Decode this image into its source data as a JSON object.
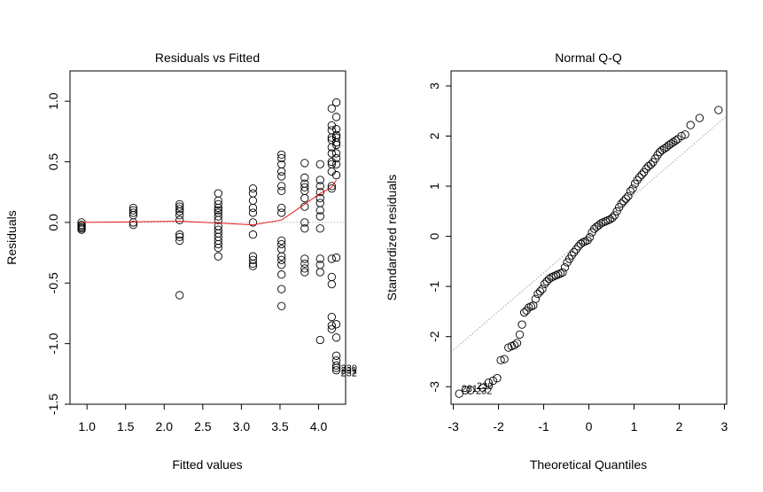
{
  "chart_data": [
    {
      "type": "scatter",
      "title": "Residuals vs Fitted",
      "xlabel": "Fitted values",
      "ylabel": "Residuals",
      "xlim": [
        0.78,
        4.35
      ],
      "ylim": [
        -1.5,
        1.25
      ],
      "xticks": [
        1.0,
        1.5,
        2.0,
        2.5,
        3.0,
        3.5,
        4.0
      ],
      "xtick_labels": [
        "1.0",
        "1.5",
        "2.0",
        "2.5",
        "3.0",
        "3.5",
        "4.0"
      ],
      "yticks": [
        -1.5,
        -1.0,
        -0.5,
        0.0,
        0.5,
        1.0
      ],
      "ytick_labels": [
        "-1.5",
        "-1.0",
        "-0.5",
        "0.0",
        "0.5",
        "1.0"
      ],
      "reference_line_y": 0,
      "points": [
        [
          0.93,
          0.0
        ],
        [
          0.93,
          -0.02
        ],
        [
          0.93,
          -0.03
        ],
        [
          0.93,
          -0.04
        ],
        [
          0.93,
          -0.05
        ],
        [
          0.93,
          -0.06
        ],
        [
          1.6,
          0.12
        ],
        [
          1.6,
          0.1
        ],
        [
          1.6,
          0.08
        ],
        [
          1.6,
          0.06
        ],
        [
          1.6,
          0.0
        ],
        [
          1.6,
          -0.02
        ],
        [
          2.2,
          0.15
        ],
        [
          2.2,
          0.13
        ],
        [
          2.2,
          0.11
        ],
        [
          2.2,
          0.09
        ],
        [
          2.2,
          0.06
        ],
        [
          2.2,
          0.02
        ],
        [
          2.2,
          -0.1
        ],
        [
          2.2,
          -0.12
        ],
        [
          2.2,
          -0.15
        ],
        [
          2.2,
          -0.6
        ],
        [
          2.7,
          0.24
        ],
        [
          2.7,
          0.18
        ],
        [
          2.7,
          0.15
        ],
        [
          2.7,
          0.12
        ],
        [
          2.7,
          0.1
        ],
        [
          2.7,
          0.08
        ],
        [
          2.7,
          0.05
        ],
        [
          2.7,
          0.02
        ],
        [
          2.7,
          -0.03
        ],
        [
          2.7,
          -0.06
        ],
        [
          2.7,
          -0.09
        ],
        [
          2.7,
          -0.12
        ],
        [
          2.7,
          -0.15
        ],
        [
          2.7,
          -0.18
        ],
        [
          2.7,
          -0.21
        ],
        [
          2.7,
          -0.28
        ],
        [
          3.15,
          0.28
        ],
        [
          3.15,
          0.24
        ],
        [
          3.15,
          0.18
        ],
        [
          3.15,
          0.12
        ],
        [
          3.15,
          0.08
        ],
        [
          3.15,
          0.0
        ],
        [
          3.15,
          -0.1
        ],
        [
          3.15,
          -0.28
        ],
        [
          3.15,
          -0.31
        ],
        [
          3.15,
          -0.34
        ],
        [
          3.15,
          -0.36
        ],
        [
          3.52,
          0.56
        ],
        [
          3.52,
          0.53
        ],
        [
          3.52,
          0.48
        ],
        [
          3.52,
          0.42
        ],
        [
          3.52,
          0.38
        ],
        [
          3.52,
          0.3
        ],
        [
          3.52,
          0.26
        ],
        [
          3.52,
          0.12
        ],
        [
          3.52,
          0.08
        ],
        [
          3.52,
          -0.15
        ],
        [
          3.52,
          -0.18
        ],
        [
          3.52,
          -0.22
        ],
        [
          3.52,
          -0.28
        ],
        [
          3.52,
          -0.31
        ],
        [
          3.52,
          -0.35
        ],
        [
          3.52,
          -0.43
        ],
        [
          3.52,
          -0.55
        ],
        [
          3.52,
          -0.69
        ],
        [
          3.82,
          0.49
        ],
        [
          3.82,
          0.37
        ],
        [
          3.82,
          0.32
        ],
        [
          3.82,
          0.29
        ],
        [
          3.82,
          0.26
        ],
        [
          3.82,
          0.2
        ],
        [
          3.82,
          0.13
        ],
        [
          3.82,
          0.0
        ],
        [
          3.82,
          -0.05
        ],
        [
          3.82,
          -0.3
        ],
        [
          3.82,
          -0.34
        ],
        [
          3.82,
          -0.38
        ],
        [
          3.82,
          -0.41
        ],
        [
          4.02,
          0.48
        ],
        [
          4.02,
          0.35
        ],
        [
          4.02,
          0.3
        ],
        [
          4.02,
          0.25
        ],
        [
          4.02,
          0.2
        ],
        [
          4.02,
          0.16
        ],
        [
          4.02,
          0.1
        ],
        [
          4.02,
          0.05
        ],
        [
          4.02,
          -0.05
        ],
        [
          4.02,
          -0.3
        ],
        [
          4.02,
          -0.35
        ],
        [
          4.02,
          -0.41
        ],
        [
          4.02,
          -0.97
        ],
        [
          4.17,
          0.94
        ],
        [
          4.17,
          0.8
        ],
        [
          4.17,
          0.76
        ],
        [
          4.17,
          0.7
        ],
        [
          4.17,
          0.68
        ],
        [
          4.17,
          0.62
        ],
        [
          4.17,
          0.57
        ],
        [
          4.17,
          0.5
        ],
        [
          4.17,
          0.48
        ],
        [
          4.17,
          0.42
        ],
        [
          4.17,
          0.3
        ],
        [
          4.17,
          0.28
        ],
        [
          4.17,
          -0.3
        ],
        [
          4.17,
          -0.45
        ],
        [
          4.17,
          -0.51
        ],
        [
          4.17,
          -0.78
        ],
        [
          4.17,
          -0.85
        ],
        [
          4.17,
          -0.88
        ],
        [
          4.23,
          0.99
        ],
        [
          4.23,
          0.87
        ],
        [
          4.23,
          0.77
        ],
        [
          4.23,
          0.72
        ],
        [
          4.23,
          0.7
        ],
        [
          4.23,
          0.66
        ],
        [
          4.23,
          0.64
        ],
        [
          4.23,
          0.57
        ],
        [
          4.23,
          0.53
        ],
        [
          4.23,
          0.48
        ],
        [
          4.23,
          0.39
        ],
        [
          4.23,
          -0.29
        ],
        [
          4.23,
          -0.84
        ],
        [
          4.23,
          -0.95
        ],
        [
          4.23,
          -1.1
        ],
        [
          4.23,
          -1.14
        ],
        [
          4.23,
          -1.18
        ],
        [
          4.23,
          -1.2
        ],
        [
          4.23,
          -1.22
        ]
      ],
      "smooth_line": [
        [
          0.93,
          0.0
        ],
        [
          1.6,
          0.005
        ],
        [
          2.2,
          0.01
        ],
        [
          2.7,
          -0.005
        ],
        [
          3.15,
          -0.02
        ],
        [
          3.52,
          0.02
        ],
        [
          3.82,
          0.15
        ],
        [
          4.02,
          0.24
        ],
        [
          4.17,
          0.29
        ],
        [
          4.23,
          0.35
        ]
      ],
      "annotations": [
        {
          "text": "230",
          "x": 4.23,
          "y": -1.2
        },
        {
          "text": "231",
          "x": 4.23,
          "y": -1.22
        },
        {
          "text": "232",
          "x": 4.23,
          "y": -1.24
        }
      ]
    },
    {
      "type": "scatter",
      "title": "Normal Q-Q",
      "xlabel": "Theoretical Quantiles",
      "ylabel": "Standardized residuals",
      "xlim": [
        -3.05,
        3.05
      ],
      "ylim": [
        -3.35,
        3.3
      ],
      "xticks": [
        -3,
        -2,
        -1,
        0,
        1,
        2,
        3
      ],
      "xtick_labels": [
        "-3",
        "-2",
        "-1",
        "0",
        "1",
        "2",
        "3"
      ],
      "yticks": [
        -3,
        -2,
        -1,
        0,
        1,
        2,
        3
      ],
      "ytick_labels": [
        "-3",
        "-2",
        "-1",
        "0",
        "1",
        "2",
        "3"
      ],
      "reference_line": [
        [
          -3.05,
          -2.31
        ],
        [
          3.05,
          2.4
        ]
      ],
      "points": [
        [
          -2.87,
          -3.14
        ],
        [
          -2.73,
          -3.07
        ],
        [
          -2.62,
          -3.07
        ],
        [
          -2.35,
          -3.02
        ],
        [
          -2.22,
          -2.92
        ],
        [
          -2.12,
          -2.88
        ],
        [
          -2.03,
          -2.83
        ],
        [
          -1.95,
          -2.47
        ],
        [
          -1.87,
          -2.45
        ],
        [
          -1.78,
          -2.22
        ],
        [
          -1.71,
          -2.19
        ],
        [
          -1.65,
          -2.17
        ],
        [
          -1.59,
          -2.13
        ],
        [
          -1.53,
          -1.96
        ],
        [
          -1.48,
          -1.76
        ],
        [
          -1.43,
          -1.52
        ],
        [
          -1.38,
          -1.48
        ],
        [
          -1.33,
          -1.42
        ],
        [
          -1.28,
          -1.4
        ],
        [
          -1.23,
          -1.38
        ],
        [
          -1.18,
          -1.25
        ],
        [
          -1.13,
          -1.15
        ],
        [
          -1.08,
          -1.1
        ],
        [
          -1.03,
          -1.05
        ],
        [
          -0.98,
          -0.95
        ],
        [
          -0.93,
          -0.9
        ],
        [
          -0.88,
          -0.85
        ],
        [
          -0.83,
          -0.82
        ],
        [
          -0.78,
          -0.8
        ],
        [
          -0.73,
          -0.78
        ],
        [
          -0.68,
          -0.76
        ],
        [
          -0.63,
          -0.74
        ],
        [
          -0.58,
          -0.72
        ],
        [
          -0.53,
          -0.62
        ],
        [
          -0.48,
          -0.52
        ],
        [
          -0.43,
          -0.45
        ],
        [
          -0.38,
          -0.38
        ],
        [
          -0.33,
          -0.32
        ],
        [
          -0.28,
          -0.26
        ],
        [
          -0.23,
          -0.2
        ],
        [
          -0.18,
          -0.15
        ],
        [
          -0.13,
          -0.12
        ],
        [
          -0.08,
          -0.1
        ],
        [
          -0.03,
          -0.08
        ],
        [
          0.02,
          -0.02
        ],
        [
          0.07,
          0.08
        ],
        [
          0.12,
          0.15
        ],
        [
          0.17,
          0.19
        ],
        [
          0.22,
          0.22
        ],
        [
          0.27,
          0.26
        ],
        [
          0.32,
          0.28
        ],
        [
          0.37,
          0.3
        ],
        [
          0.42,
          0.32
        ],
        [
          0.47,
          0.34
        ],
        [
          0.52,
          0.37
        ],
        [
          0.57,
          0.42
        ],
        [
          0.62,
          0.5
        ],
        [
          0.67,
          0.58
        ],
        [
          0.72,
          0.65
        ],
        [
          0.77,
          0.7
        ],
        [
          0.82,
          0.75
        ],
        [
          0.87,
          0.8
        ],
        [
          0.92,
          0.9
        ],
        [
          0.97,
          0.95
        ],
        [
          1.02,
          1.05
        ],
        [
          1.07,
          1.12
        ],
        [
          1.12,
          1.18
        ],
        [
          1.17,
          1.23
        ],
        [
          1.22,
          1.28
        ],
        [
          1.27,
          1.35
        ],
        [
          1.32,
          1.4
        ],
        [
          1.37,
          1.43
        ],
        [
          1.42,
          1.48
        ],
        [
          1.47,
          1.55
        ],
        [
          1.52,
          1.62
        ],
        [
          1.57,
          1.68
        ],
        [
          1.62,
          1.72
        ],
        [
          1.67,
          1.75
        ],
        [
          1.72,
          1.78
        ],
        [
          1.77,
          1.82
        ],
        [
          1.82,
          1.85
        ],
        [
          1.87,
          1.88
        ],
        [
          1.92,
          1.91
        ],
        [
          1.97,
          1.94
        ],
        [
          2.05,
          2.0
        ],
        [
          2.13,
          2.03
        ],
        [
          2.25,
          2.22
        ],
        [
          2.45,
          2.36
        ],
        [
          2.87,
          2.52
        ]
      ],
      "annotations": [
        {
          "text": "230",
          "x": -2.58,
          "y": -2.98
        },
        {
          "text": "231",
          "x": -2.92,
          "y": -3.03
        },
        {
          "text": "232",
          "x": -2.6,
          "y": -3.08
        }
      ]
    }
  ]
}
